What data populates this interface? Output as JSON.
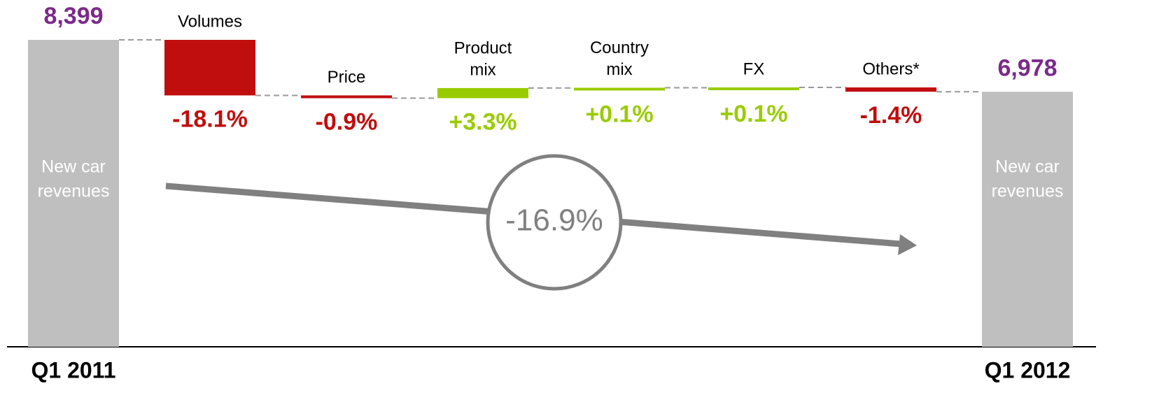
{
  "chart_data": {
    "type": "waterfall",
    "start": {
      "category": "Q1 2011",
      "value": 8399,
      "value_label": "8,399",
      "inner_label": [
        "New car",
        "revenues"
      ]
    },
    "end": {
      "category": "Q1 2012",
      "value": 6978,
      "value_label": "6,978",
      "inner_label": [
        "New car",
        "revenues"
      ]
    },
    "categories": [
      [
        "Volumes"
      ],
      [
        "Price"
      ],
      [
        "Product",
        "mix"
      ],
      [
        "Country",
        "mix"
      ],
      [
        "FX"
      ],
      [
        "Others*"
      ]
    ],
    "values": [
      -18.1,
      -0.9,
      3.3,
      0.1,
      0.1,
      -1.4
    ],
    "value_labels": [
      "-18.1%",
      "-0.9%",
      "+3.3%",
      "+0.1%",
      "+0.1%",
      "-1.4%"
    ],
    "annotation": "-16.9%",
    "colors": {
      "total": "#bfbfbf",
      "negative": "#c00d0d",
      "positive": "#99cc00",
      "total_label": "#7b2a8a",
      "annotation": "#808080"
    }
  }
}
